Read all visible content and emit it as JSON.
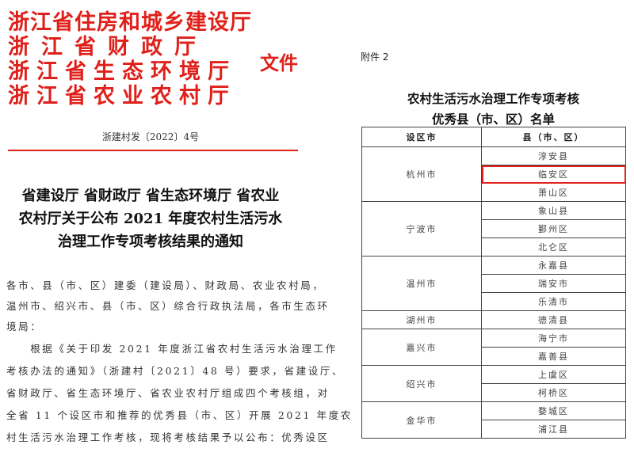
{
  "letterhead": {
    "lines": [
      "浙江省住房和城乡建设厅",
      "浙江省财政厅",
      "浙江省生态环境厅",
      "浙江省农业农村厅"
    ],
    "suffix": "文件",
    "color": "#e0201a"
  },
  "doc_number": "浙建村发〔2022〕4号",
  "title": [
    "省建设厅 省财政厅 省生态环境厅 省农业",
    "农村厅关于公布 2021 年度农村生活污水",
    "治理工作专项考核结果的通知"
  ],
  "body": [
    "各市、县（市、区）建委（建设局）、财政局、农业农村局，",
    "温州市、绍兴市、县（市、区）综合行政执法局，各市生态环",
    "境局：",
    "　　根据《关于印发 2021 年度浙江省农村生活污水治理工作",
    "考核办法的通知》（浙建村〔2021〕48 号）要求，省建设厅、",
    "省财政厅、省生态环境厅、省农业农村厅组成四个考核组，对",
    "全省 11 个设区市和推荐的优秀县（市、区）开展 2021 年度农",
    "村生活污水治理工作考核，现将考核结果予以公布：优秀设区"
  ],
  "attachment": {
    "label": "附件 2",
    "title": [
      "农村生活污水治理工作专项考核",
      "优秀县（市、区）名单"
    ],
    "headers": [
      "设区市",
      "县（市、区）"
    ],
    "groups": [
      {
        "city": "杭州市",
        "counties": [
          "淳安县",
          "临安区",
          "萧山区"
        ]
      },
      {
        "city": "宁波市",
        "counties": [
          "象山县",
          "鄞州区",
          "北仑区"
        ]
      },
      {
        "city": "温州市",
        "counties": [
          "永嘉县",
          "瑞安市",
          "乐清市"
        ]
      },
      {
        "city": "湖州市",
        "counties": [
          "德清县"
        ]
      },
      {
        "city": "嘉兴市",
        "counties": [
          "海宁市",
          "嘉善县"
        ]
      },
      {
        "city": "绍兴市",
        "counties": [
          "上虞区",
          "柯桥区"
        ]
      },
      {
        "city": "金华市",
        "counties": [
          "婺城区",
          "浦江县"
        ]
      }
    ],
    "highlighted": "临安区"
  }
}
